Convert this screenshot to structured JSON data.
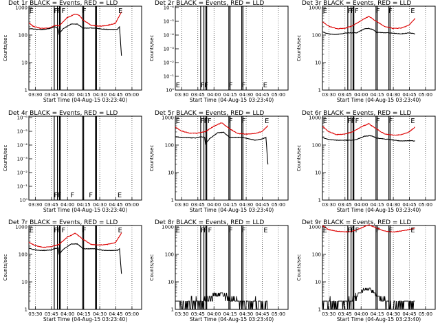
{
  "chart_data": {
    "type": "line",
    "description_note": "3x3 grid of detector light curves",
    "x_ticks": [
      "03:30",
      "03:45",
      "04:00",
      "04:15",
      "04:30",
      "04:45",
      "05:00"
    ],
    "x_range_min": [
      25,
      305
    ],
    "xlabel": "Start Time (04-Aug-15 03:23:40)",
    "ylabel": "Counts/sec",
    "y_ticks_normal": [
      "1",
      "10",
      "100",
      "1000"
    ],
    "y_ticks_tiny": [
      "10⁻¹",
      "10⁻²",
      "10⁻³",
      "10⁻⁴",
      "10⁻⁵",
      "10⁻⁶"
    ],
    "y_ticks_tiny_bottom": "10⁰",
    "series_names": [
      "Events",
      "LLD"
    ],
    "series_colors": {
      "Events": "#000000",
      "LLD": "#dd0000"
    },
    "vlines_min": [
      88,
      96,
      101,
      103,
      158,
      161,
      190,
      193
    ],
    "panels": [
      {
        "title": "Det 1r BLACK = Events, RED = LLD",
        "yscale": "normal",
        "flags": [
          {
            "t": "E",
            "x": 26
          },
          {
            "t": "F",
            "x": 87
          },
          {
            "t": "F",
            "x": 95
          },
          {
            "t": "F",
            "x": 106
          },
          {
            "t": "F",
            "x": 158
          },
          {
            "t": "E",
            "x": 247
          }
        ],
        "events_profile": [
          [
            25,
            170
          ],
          [
            30,
            170
          ],
          [
            45,
            160
          ],
          [
            60,
            160
          ],
          [
            75,
            170
          ],
          [
            88,
            200
          ],
          [
            97,
            180
          ],
          [
            100,
            110
          ],
          [
            110,
            170
          ],
          [
            130,
            250
          ],
          [
            145,
            250
          ],
          [
            160,
            180
          ],
          [
            190,
            180
          ],
          [
            200,
            170
          ],
          [
            222,
            160
          ],
          [
            245,
            160
          ],
          [
            250,
            200
          ],
          [
            255,
            18
          ]
        ],
        "lld_profile": [
          [
            25,
            280
          ],
          [
            35,
            210
          ],
          [
            55,
            175
          ],
          [
            75,
            180
          ],
          [
            90,
            225
          ],
          [
            100,
            215
          ],
          [
            120,
            430
          ],
          [
            140,
            580
          ],
          [
            150,
            520
          ],
          [
            160,
            350
          ],
          [
            180,
            225
          ],
          [
            200,
            210
          ],
          [
            220,
            225
          ],
          [
            240,
            270
          ],
          [
            255,
            700
          ]
        ]
      },
      {
        "title": "Det 2r BLACK = Events, RED = LLD",
        "yscale": "tiny",
        "flags": [
          {
            "t": "E",
            "x": 26
          },
          {
            "t": "F",
            "x": 88
          },
          {
            "t": "F",
            "x": 97
          },
          {
            "t": "F",
            "x": 158
          },
          {
            "t": "F",
            "x": 190
          },
          {
            "t": "E",
            "x": 243
          }
        ],
        "events_profile": [],
        "lld_profile": []
      },
      {
        "title": "Det 3r BLACK = Events, RED = LLD",
        "yscale": "normal",
        "flags": [
          {
            "t": "E",
            "x": 26
          },
          {
            "t": "F",
            "x": 88
          },
          {
            "t": "F",
            "x": 95
          },
          {
            "t": "F",
            "x": 105
          },
          {
            "t": "F",
            "x": 158
          },
          {
            "t": "F",
            "x": 189
          },
          {
            "t": "E",
            "x": 244
          }
        ],
        "events_profile": [
          [
            25,
            130
          ],
          [
            40,
            110
          ],
          [
            55,
            105
          ],
          [
            70,
            110
          ],
          [
            85,
            120
          ],
          [
            100,
            120
          ],
          [
            110,
            120
          ],
          [
            130,
            170
          ],
          [
            140,
            175
          ],
          [
            150,
            160
          ],
          [
            160,
            125
          ],
          [
            190,
            120
          ],
          [
            220,
            110
          ],
          [
            240,
            120
          ],
          [
            250,
            115
          ],
          [
            255,
            110
          ]
        ],
        "lld_profile": [
          [
            25,
            300
          ],
          [
            40,
            215
          ],
          [
            60,
            170
          ],
          [
            80,
            175
          ],
          [
            100,
            220
          ],
          [
            120,
            330
          ],
          [
            140,
            480
          ],
          [
            160,
            310
          ],
          [
            180,
            205
          ],
          [
            200,
            175
          ],
          [
            220,
            180
          ],
          [
            240,
            230
          ],
          [
            255,
            400
          ]
        ]
      },
      {
        "title": "Det 4r BLACK = Events, RED = LLD",
        "yscale": "tiny",
        "flags": [
          {
            "t": "F",
            "x": 87
          },
          {
            "t": "F",
            "x": 96
          },
          {
            "t": "F",
            "x": 128
          },
          {
            "t": "F",
            "x": 174
          },
          {
            "t": "E",
            "x": 245
          }
        ],
        "events_profile": [],
        "lld_profile": []
      },
      {
        "title": "Det 5r BLACK = Events, RED = LLD",
        "yscale": "normal",
        "flags": [
          {
            "t": "E",
            "x": 26
          },
          {
            "t": "F",
            "x": 87
          },
          {
            "t": "F",
            "x": 96
          },
          {
            "t": "F",
            "x": 105
          },
          {
            "t": "F",
            "x": 158
          },
          {
            "t": "F",
            "x": 190
          },
          {
            "t": "E",
            "x": 247
          }
        ],
        "events_profile": [
          [
            25,
            200
          ],
          [
            40,
            190
          ],
          [
            60,
            185
          ],
          [
            75,
            180
          ],
          [
            88,
            200
          ],
          [
            98,
            190
          ],
          [
            100,
            110
          ],
          [
            110,
            170
          ],
          [
            130,
            280
          ],
          [
            145,
            290
          ],
          [
            160,
            190
          ],
          [
            190,
            190
          ],
          [
            205,
            170
          ],
          [
            225,
            150
          ],
          [
            240,
            165
          ],
          [
            250,
            190
          ],
          [
            255,
            20
          ]
        ],
        "lld_profile": [
          [
            25,
            450
          ],
          [
            40,
            330
          ],
          [
            60,
            270
          ],
          [
            80,
            270
          ],
          [
            100,
            310
          ],
          [
            120,
            480
          ],
          [
            140,
            650
          ],
          [
            160,
            390
          ],
          [
            180,
            265
          ],
          [
            200,
            250
          ],
          [
            220,
            260
          ],
          [
            240,
            310
          ],
          [
            255,
            500
          ]
        ]
      },
      {
        "title": "Det 6r BLACK = Events, RED = LLD",
        "yscale": "normal",
        "flags": [
          {
            "t": "E",
            "x": 26
          },
          {
            "t": "F",
            "x": 87
          },
          {
            "t": "F",
            "x": 96
          },
          {
            "t": "F",
            "x": 106
          },
          {
            "t": "F",
            "x": 158
          },
          {
            "t": "F",
            "x": 190
          },
          {
            "t": "E",
            "x": 244
          }
        ],
        "events_profile": [
          [
            25,
            190
          ],
          [
            40,
            160
          ],
          [
            60,
            150
          ],
          [
            80,
            150
          ],
          [
            100,
            150
          ],
          [
            110,
            160
          ],
          [
            130,
            210
          ],
          [
            145,
            220
          ],
          [
            160,
            180
          ],
          [
            190,
            160
          ],
          [
            220,
            140
          ],
          [
            245,
            145
          ],
          [
            255,
            140
          ]
        ],
        "lld_profile": [
          [
            25,
            480
          ],
          [
            40,
            310
          ],
          [
            60,
            240
          ],
          [
            80,
            250
          ],
          [
            100,
            300
          ],
          [
            120,
            450
          ],
          [
            140,
            600
          ],
          [
            160,
            380
          ],
          [
            180,
            250
          ],
          [
            200,
            230
          ],
          [
            220,
            235
          ],
          [
            240,
            300
          ],
          [
            255,
            450
          ]
        ]
      },
      {
        "title": "Det 7r BLACK = Events, RED = LLD",
        "yscale": "normal",
        "flags": [
          {
            "t": "E",
            "x": 26
          },
          {
            "t": "F",
            "x": 87
          },
          {
            "t": "F",
            "x": 95
          },
          {
            "t": "F",
            "x": 106
          },
          {
            "t": "F",
            "x": 158
          },
          {
            "t": "E",
            "x": 246
          }
        ],
        "events_profile": [
          [
            25,
            170
          ],
          [
            35,
            150
          ],
          [
            50,
            140
          ],
          [
            65,
            140
          ],
          [
            80,
            145
          ],
          [
            88,
            160
          ],
          [
            98,
            170
          ],
          [
            100,
            100
          ],
          [
            110,
            150
          ],
          [
            130,
            240
          ],
          [
            145,
            240
          ],
          [
            160,
            160
          ],
          [
            190,
            160
          ],
          [
            210,
            140
          ],
          [
            225,
            140
          ],
          [
            245,
            140
          ],
          [
            250,
            160
          ],
          [
            255,
            20
          ]
        ],
        "lld_profile": [
          [
            25,
            280
          ],
          [
            40,
            210
          ],
          [
            60,
            180
          ],
          [
            80,
            190
          ],
          [
            100,
            230
          ],
          [
            120,
            420
          ],
          [
            140,
            590
          ],
          [
            160,
            350
          ],
          [
            180,
            230
          ],
          [
            200,
            220
          ],
          [
            220,
            230
          ],
          [
            240,
            270
          ],
          [
            255,
            600
          ]
        ]
      },
      {
        "title": "Det 8r BLACK = Events, RED = LLD",
        "yscale": "normal",
        "flags": [
          {
            "t": "E",
            "x": 26
          },
          {
            "t": "F",
            "x": 88
          },
          {
            "t": "F",
            "x": 95
          },
          {
            "t": "F",
            "x": 106
          },
          {
            "t": "F",
            "x": 158
          },
          {
            "t": "F",
            "x": 190
          },
          {
            "t": "E",
            "x": 244
          }
        ],
        "events_profile": "noisy_low_peak4",
        "lld_profile": []
      },
      {
        "title": "Det 9r BLACK = Events, RED = LLD",
        "yscale": "normal",
        "flags": [
          {
            "t": "E",
            "x": 26
          },
          {
            "t": "F",
            "x": 87
          },
          {
            "t": "F",
            "x": 95
          },
          {
            "t": "F",
            "x": 106
          },
          {
            "t": "F",
            "x": 158
          },
          {
            "t": "F",
            "x": 190
          },
          {
            "t": "E",
            "x": 244
          }
        ],
        "events_profile": "noisy_low_peak6",
        "lld_profile": [
          [
            25,
            1100
          ],
          [
            40,
            800
          ],
          [
            60,
            700
          ],
          [
            80,
            650
          ],
          [
            100,
            700
          ],
          [
            120,
            900
          ],
          [
            140,
            1200
          ],
          [
            160,
            900
          ],
          [
            180,
            700
          ],
          [
            200,
            650
          ],
          [
            220,
            700
          ],
          [
            240,
            800
          ],
          [
            255,
            900
          ]
        ]
      }
    ]
  }
}
